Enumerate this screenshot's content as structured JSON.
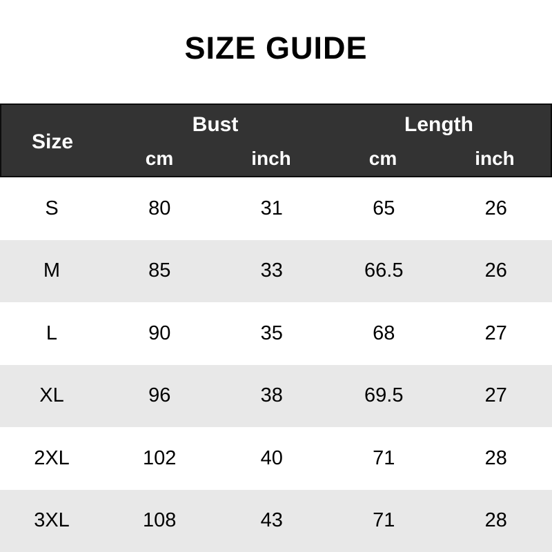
{
  "title": "SIZE GUIDE",
  "colors": {
    "header_bg": "#333333",
    "header_border": "#0d0d0d",
    "stripe_bg": "#e8e8e8",
    "header_text": "#ffffff",
    "body_text": "#000000",
    "page_bg": "#ffffff"
  },
  "table": {
    "size_header": "Size",
    "groups": [
      {
        "label": "Bust"
      },
      {
        "label": "Length"
      }
    ],
    "unit_headers": [
      "cm",
      "inch",
      "cm",
      "inch"
    ],
    "rows": [
      {
        "size": "S",
        "values": [
          "80",
          "31",
          "65",
          "26"
        ]
      },
      {
        "size": "M",
        "values": [
          "85",
          "33",
          "66.5",
          "26"
        ]
      },
      {
        "size": "L",
        "values": [
          "90",
          "35",
          "68",
          "27"
        ]
      },
      {
        "size": "XL",
        "values": [
          "96",
          "38",
          "69.5",
          "27"
        ]
      },
      {
        "size": "2XL",
        "values": [
          "102",
          "40",
          "71",
          "28"
        ]
      },
      {
        "size": "3XL",
        "values": [
          "108",
          "43",
          "71",
          "28"
        ]
      }
    ]
  },
  "chart_data": {
    "type": "table",
    "title": "SIZE GUIDE",
    "columns": [
      "Size",
      "Bust cm",
      "Bust inch",
      "Length cm",
      "Length inch"
    ],
    "rows": [
      [
        "S",
        80,
        31,
        65,
        26
      ],
      [
        "M",
        85,
        33,
        66.5,
        26
      ],
      [
        "L",
        90,
        35,
        68,
        27
      ],
      [
        "XL",
        96,
        38,
        69.5,
        27
      ],
      [
        "2XL",
        102,
        40,
        71,
        28
      ],
      [
        "3XL",
        108,
        43,
        71,
        28
      ]
    ]
  }
}
